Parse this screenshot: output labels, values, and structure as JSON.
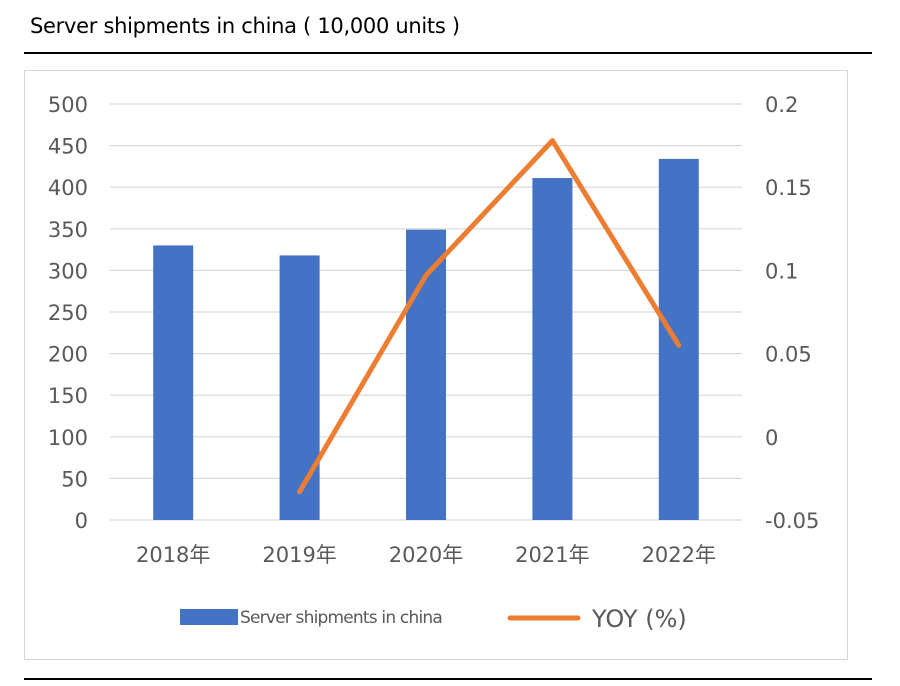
{
  "title": "Server shipments  in china ( 10,000 units )",
  "chart_data": {
    "type": "bar",
    "categories": [
      "2018年",
      "2019年",
      "2020年",
      "2021年",
      "2022年"
    ],
    "series": [
      {
        "name": "Server shipments in china",
        "type": "bar",
        "axis": "left",
        "color": "#4472C4",
        "values": [
          330,
          318,
          349,
          411,
          434
        ]
      },
      {
        "name": "YOY (%)",
        "type": "line",
        "axis": "right",
        "color": "#ED7D31",
        "values": [
          null,
          -0.033,
          0.097,
          0.178,
          0.055
        ]
      }
    ],
    "y_left": {
      "ylim": [
        0,
        500
      ],
      "ticks": [
        "500",
        "450",
        "400",
        "350",
        "300",
        "250",
        "200",
        "150",
        "100",
        "50",
        "0"
      ]
    },
    "y_right": {
      "ylim": [
        -0.05,
        0.2
      ],
      "ticks": [
        "0.2",
        "0.15",
        "0.1",
        "0.05",
        "0",
        "-0.05"
      ]
    },
    "grid": true,
    "legend_position": "bottom"
  }
}
